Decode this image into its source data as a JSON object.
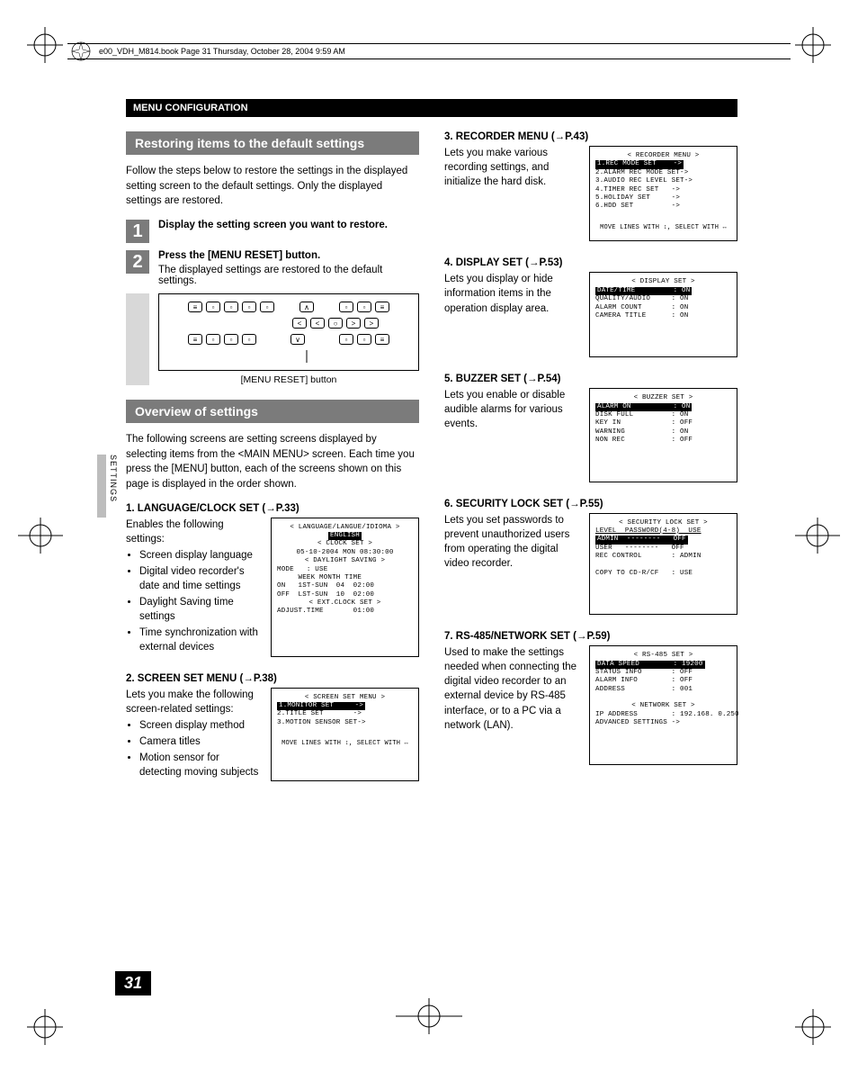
{
  "meta_header": "e00_VDH_M814.book  Page 31  Thursday, October 28, 2004  9:59 AM",
  "header_bar": "MENU CONFIGURATION",
  "side_tab": "SETTINGS",
  "page_number": "31",
  "section1_title": "Restoring items to the default settings",
  "section1_intro": "Follow the steps below to restore the settings in the displayed setting screen to the default settings. Only the displayed settings are restored.",
  "step1_num": "1",
  "step1_bold": "Display the setting screen you want to restore.",
  "step2_num": "2",
  "step2_bold": "Press the [MENU RESET] button.",
  "step2_text": "The displayed settings are restored to the default settings.",
  "panel_caption": "[MENU RESET] button",
  "section2_title": "Overview of settings",
  "section2_intro": "The following screens are setting screens displayed by selecting items from the <MAIN MENU> screen. Each time you press the [MENU] button, each of the screens shown on this page is displayed in the order shown.",
  "item1_head": "1. LANGUAGE/CLOCK SET (→P.33)",
  "item1_intro": "Enables the following settings:",
  "item1_bullets": [
    "Screen display language",
    "Digital video recorder's date and time settings",
    "Daylight Saving time settings",
    "Time synchronization with external devices"
  ],
  "screen1_lines": [
    {
      "t": "< LANGUAGE/LANGUE/IDIOMA >",
      "c": "hdr"
    },
    {
      "t": "ENGLISH",
      "c": "hdr inv"
    },
    {
      "t": "< CLOCK SET >",
      "c": "hdr"
    },
    {
      "t": "05-10-2004 MON 08:30:00",
      "c": "hdr"
    },
    {
      "t": "< DAYLIGHT SAVING >",
      "c": "hdr"
    },
    {
      "t": "MODE   : USE",
      "c": "row"
    },
    {
      "t": "     WEEK MONTH TIME",
      "c": "row"
    },
    {
      "t": "ON   1ST-SUN  04  02:00",
      "c": "row"
    },
    {
      "t": "OFF  LST-SUN  10  02:00",
      "c": "row"
    },
    {
      "t": "< EXT.CLOCK SET >",
      "c": "hdr"
    },
    {
      "t": "ADJUST.TIME       01:00",
      "c": "row"
    }
  ],
  "item2_head": "2. SCREEN SET MENU (→P.38)",
  "item2_intro": "Lets you make the following screen-related settings:",
  "item2_bullets": [
    "Screen display method",
    "Camera titles",
    "Motion sensor for detecting moving subjects"
  ],
  "screen2_title": "< SCREEN SET MENU >",
  "screen2_rows": [
    {
      "l": "1.MONITOR SET",
      "r": "->",
      "inv": true
    },
    {
      "l": "2.TITLE SET",
      "r": "->"
    },
    {
      "l": "3.MOTION SENSOR SET",
      "r": "->"
    }
  ],
  "screen2_foot": "MOVE LINES WITH ↕, SELECT WITH ↔",
  "item3_head": "3. RECORDER MENU (→P.43)",
  "item3_text": "Lets you make various recording settings, and initialize the hard disk.",
  "screen3_title": "< RECORDER MENU >",
  "screen3_rows": [
    {
      "l": "1.REC MODE SET",
      "r": "->",
      "inv": true
    },
    {
      "l": "2.ALARM REC MODE SET",
      "r": "->"
    },
    {
      "l": "3.AUDIO REC LEVEL SET",
      "r": "->"
    },
    {
      "l": "4.TIMER REC SET",
      "r": "->"
    },
    {
      "l": "5.HOLIDAY SET",
      "r": "->"
    },
    {
      "l": "6.HDD SET",
      "r": "->"
    }
  ],
  "screen3_foot": "MOVE LINES WITH ↕, SELECT WITH ↔",
  "item4_head": "4. DISPLAY SET (→P.53)",
  "item4_text": "Lets you display or hide information items in the operation display area.",
  "screen4_title": "< DISPLAY SET >",
  "screen4_rows": [
    {
      "l": "DATE/TIME",
      "r": ": ON",
      "inv": true
    },
    {
      "l": "QUALITY/AUDIO",
      "r": ": ON"
    },
    {
      "l": "ALARM COUNT",
      "r": ": ON"
    },
    {
      "l": "CAMERA TITLE",
      "r": ": ON"
    }
  ],
  "item5_head": "5. BUZZER SET (→P.54)",
  "item5_text": "Lets you enable or disable audible alarms for various events.",
  "screen5_title": "< BUZZER SET >",
  "screen5_rows": [
    {
      "l": "ALARM ON",
      "r": ": ON",
      "inv": true
    },
    {
      "l": "DISK FULL",
      "r": ": ON"
    },
    {
      "l": "KEY IN",
      "r": ": OFF"
    },
    {
      "l": "WARNING",
      "r": ": ON"
    },
    {
      "l": "NON REC",
      "r": ": OFF"
    }
  ],
  "item6_head": "6. SECURITY LOCK SET (→P.55)",
  "item6_text": "Lets you set passwords to prevent unauthorized users from operating the digital video recorder.",
  "screen6_title": "< SECURITY LOCK SET >",
  "screen6_rows": [
    {
      "l": "LEVEL  PASSWORD(4-8)  USE",
      "u": true
    },
    {
      "l": "ADMIN  --------",
      "r": "OFF",
      "inv": true
    },
    {
      "l": "USER   --------",
      "r": "OFF"
    },
    {
      "l": "REC CONTROL",
      "r": ": ADMIN"
    },
    {
      "l": "",
      "r": ""
    },
    {
      "l": "COPY TO CD-R/CF",
      "r": ": USE"
    }
  ],
  "item7_head": "7. RS-485/NETWORK SET (→P.59)",
  "item7_text": "Used to make the settings needed when connecting the digital video recorder to an external device by RS-485 interface, or to a PC via a network (LAN).",
  "screen7_title1": "< RS-485 SET >",
  "screen7_rows1": [
    {
      "l": "DATA SPEED",
      "r": ": 19200",
      "inv": true
    },
    {
      "l": "STATUS INFO",
      "r": ": OFF"
    },
    {
      "l": "ALARM INFO",
      "r": ": OFF"
    },
    {
      "l": "ADDRESS",
      "r": ": 001"
    }
  ],
  "screen7_title2": "< NETWORK SET >",
  "screen7_rows2": [
    {
      "l": "IP ADDRESS",
      "r": ": 192.168. 0.250"
    },
    {
      "l": "ADVANCED SETTINGS",
      "r": "->"
    }
  ],
  "colors": {
    "gray": "#7b7b7b",
    "lightgray": "#d8d8d8"
  }
}
